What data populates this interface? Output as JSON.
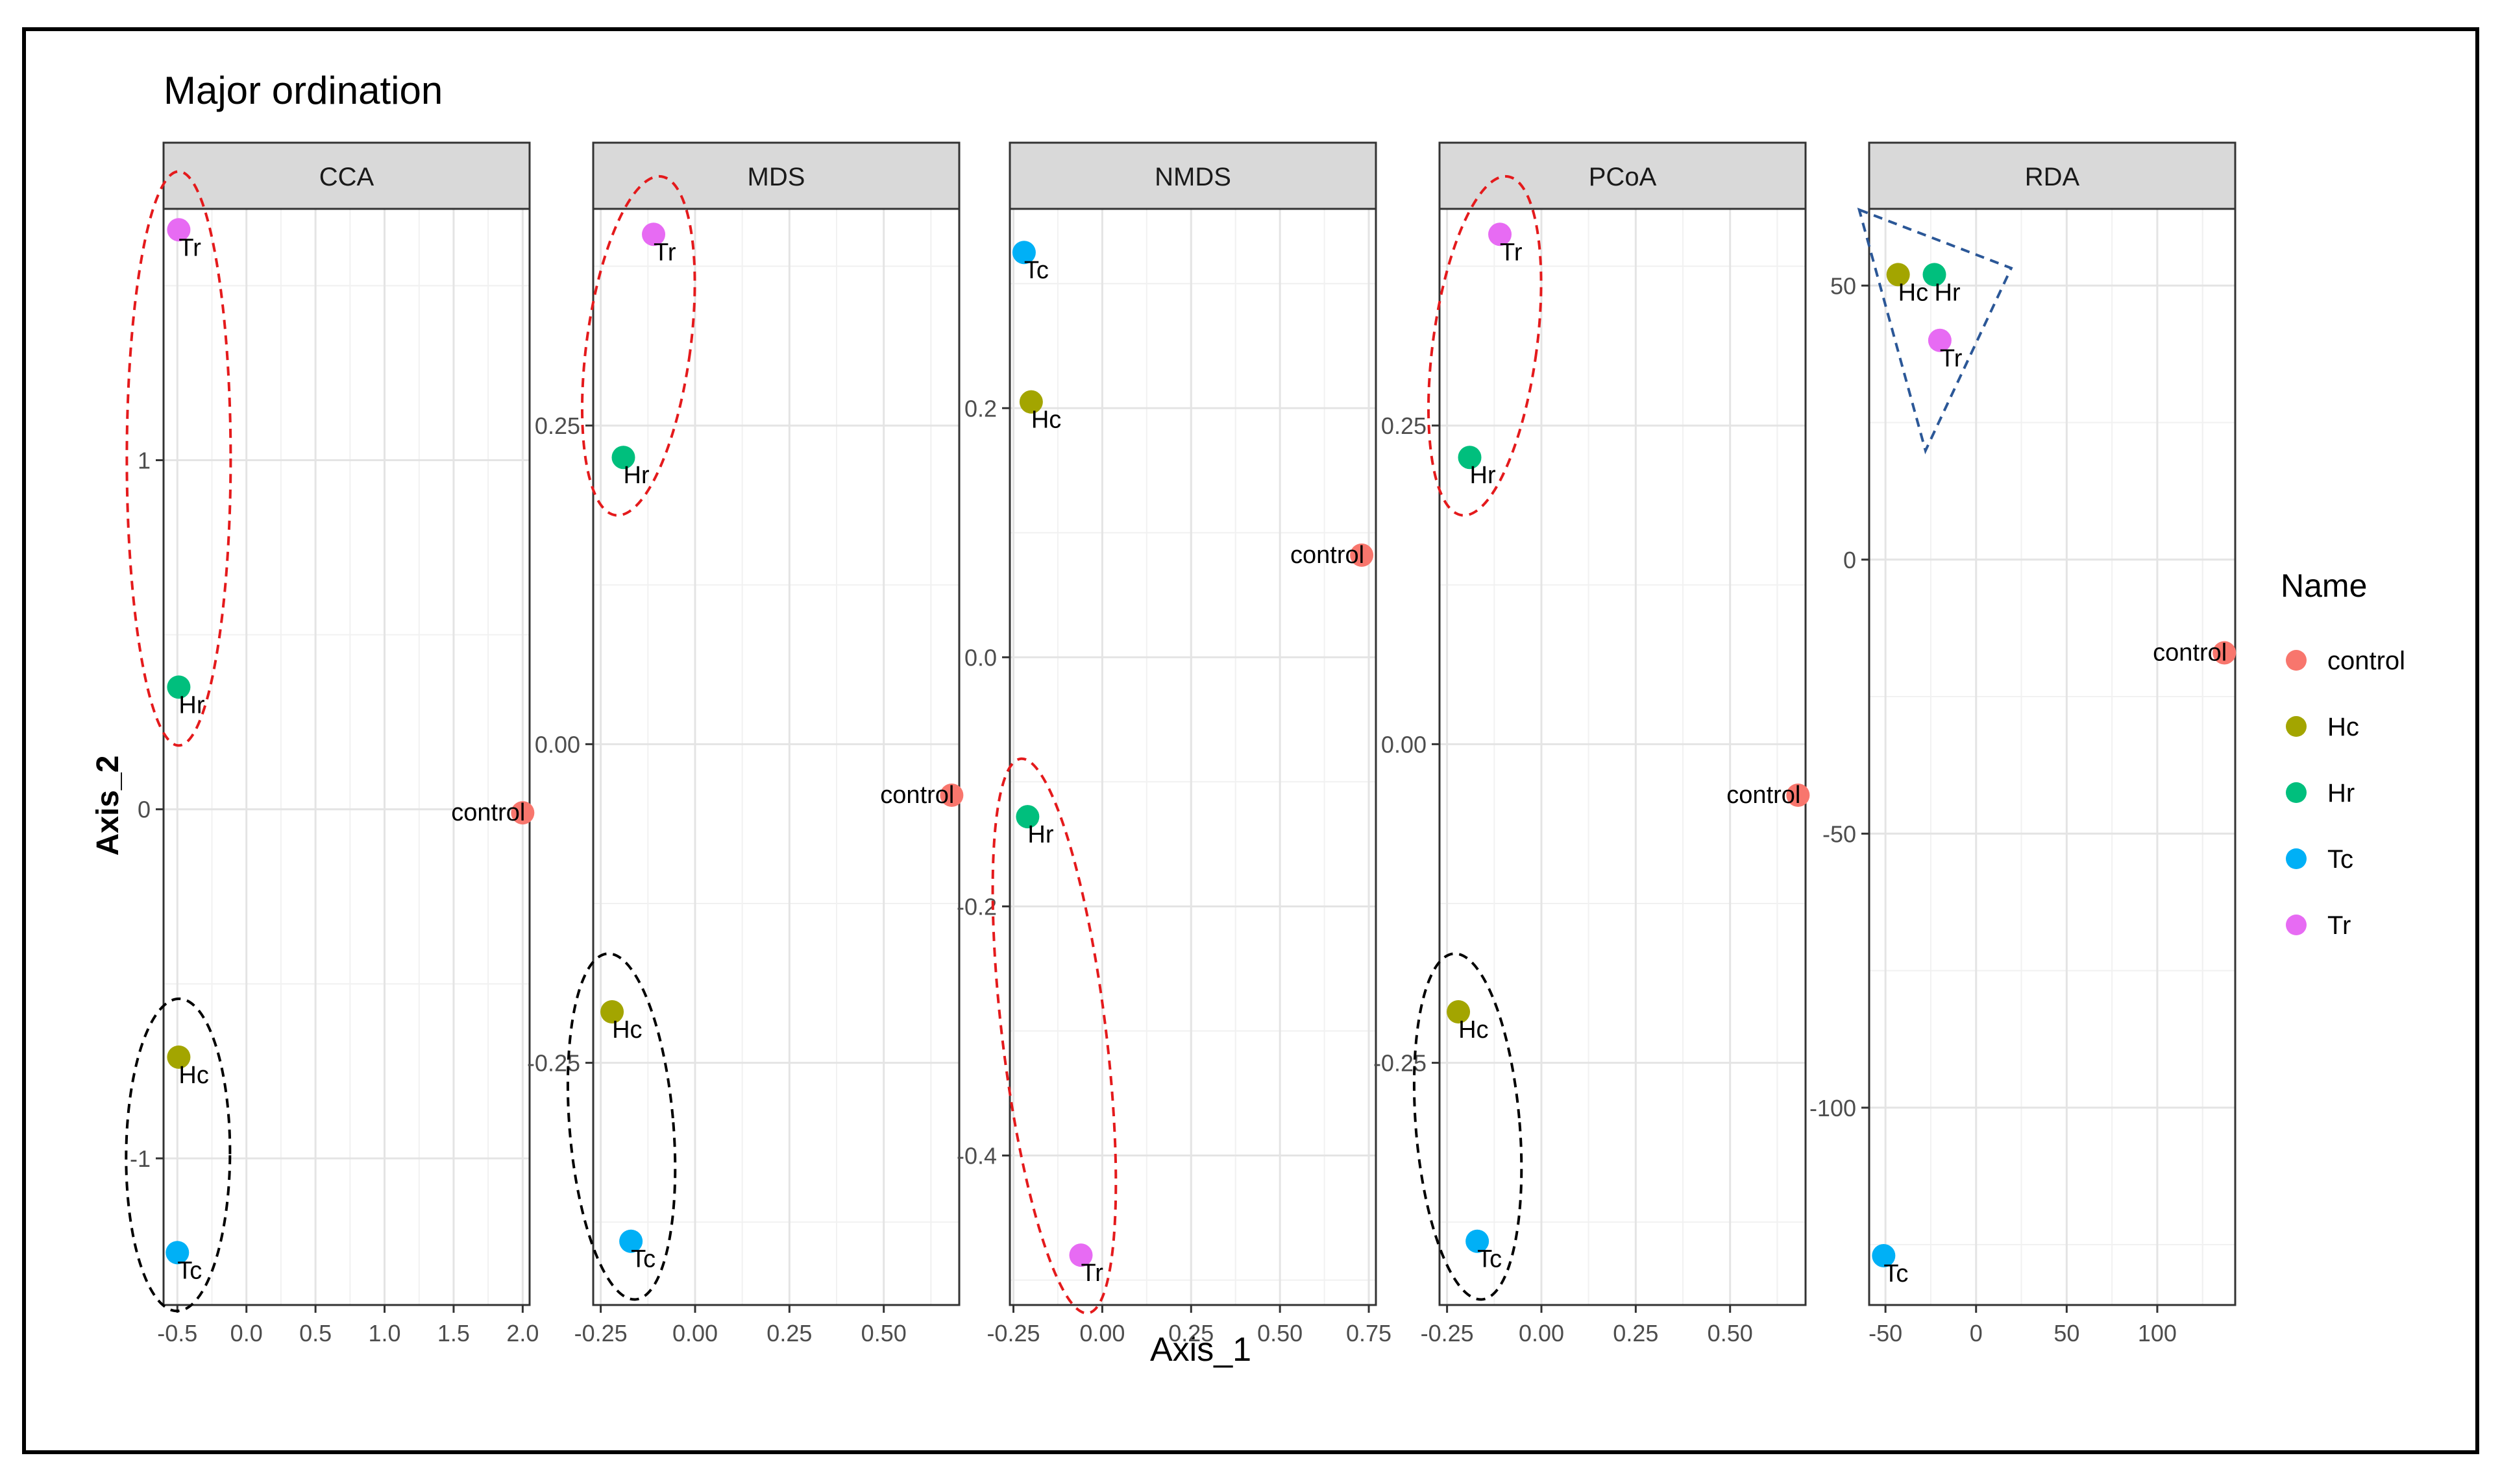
{
  "chart_data": {
    "type": "scatter",
    "title": "Major ordination",
    "xlabel": "Axis_1",
    "ylabel": "Axis_2",
    "legend": {
      "title": "Name",
      "position": "right",
      "entries": [
        {
          "name": "control",
          "color": "#F8766D"
        },
        {
          "name": "Hc",
          "color": "#A3A500"
        },
        {
          "name": "Hr",
          "color": "#00BF7D"
        },
        {
          "name": "Tc",
          "color": "#00B0F6"
        },
        {
          "name": "Tr",
          "color": "#E76BF3"
        }
      ]
    },
    "panels": [
      {
        "name": "CCA",
        "xlim": [
          -0.6,
          2.05
        ],
        "ylim": [
          -1.42,
          1.72
        ],
        "xticks": [
          -0.5,
          0.0,
          0.5,
          1.0,
          1.5,
          2.0
        ],
        "xtick_labels": [
          "-0.5",
          "0.0",
          "0.5",
          "1.0",
          "1.5",
          "2.0"
        ],
        "yticks": [
          -1,
          0,
          1
        ],
        "ytick_labels": [
          "-1",
          "0",
          "1"
        ],
        "points": [
          {
            "name": "Tr",
            "x": -0.49,
            "y": 1.66
          },
          {
            "name": "Hr",
            "x": -0.49,
            "y": 0.35
          },
          {
            "name": "control",
            "x": 2.0,
            "y": -0.01
          },
          {
            "name": "Hc",
            "x": -0.49,
            "y": -0.71
          },
          {
            "name": "Tc",
            "x": -0.5,
            "y": -1.27
          }
        ],
        "annotations": [
          {
            "shape": "ellipse",
            "style": "dashed",
            "color": "#E41A1C",
            "encloses": [
              "Tr",
              "Hr"
            ]
          },
          {
            "shape": "ellipse",
            "style": "dashed",
            "color": "#000000",
            "encloses": [
              "Hc",
              "Tc"
            ]
          }
        ]
      },
      {
        "name": "MDS",
        "xlim": [
          -0.27,
          0.7
        ],
        "ylim": [
          -0.44,
          0.42
        ],
        "xticks": [
          -0.25,
          0.0,
          0.25,
          0.5
        ],
        "xtick_labels": [
          "-0.25",
          "0.00",
          "0.25",
          "0.50"
        ],
        "yticks": [
          -0.25,
          0.0,
          0.25
        ],
        "ytick_labels": [
          "-0.25",
          "0.00",
          "0.25"
        ],
        "points": [
          {
            "name": "Tr",
            "x": -0.11,
            "y": 0.4
          },
          {
            "name": "Hr",
            "x": -0.19,
            "y": 0.225
          },
          {
            "name": "control",
            "x": 0.68,
            "y": -0.04
          },
          {
            "name": "Hc",
            "x": -0.22,
            "y": -0.21
          },
          {
            "name": "Tc",
            "x": -0.17,
            "y": -0.39
          }
        ],
        "annotations": [
          {
            "shape": "ellipse",
            "style": "dashed",
            "color": "#E41A1C",
            "encloses": [
              "Tr",
              "Hr"
            ]
          },
          {
            "shape": "ellipse",
            "style": "dashed",
            "color": "#000000",
            "encloses": [
              "Hc",
              "Tc"
            ]
          }
        ]
      },
      {
        "name": "NMDS",
        "xlim": [
          -0.26,
          0.77
        ],
        "ylim": [
          -0.52,
          0.36
        ],
        "xticks": [
          -0.25,
          0.0,
          0.25,
          0.5,
          0.75
        ],
        "xtick_labels": [
          "-0.25",
          "0.00",
          "0.25",
          "0.50",
          "0.75"
        ],
        "yticks": [
          -0.4,
          -0.2,
          0.0,
          0.2
        ],
        "ytick_labels": [
          "-0.4",
          "-0.2",
          "0.0",
          "0.2"
        ],
        "points": [
          {
            "name": "Tc",
            "x": -0.22,
            "y": 0.325
          },
          {
            "name": "Hc",
            "x": -0.2,
            "y": 0.205
          },
          {
            "name": "control",
            "x": 0.73,
            "y": 0.082
          },
          {
            "name": "Hr",
            "x": -0.21,
            "y": -0.128
          },
          {
            "name": "Tr",
            "x": -0.06,
            "y": -0.48
          }
        ],
        "annotations": [
          {
            "shape": "ellipse",
            "style": "dashed",
            "color": "#E41A1C",
            "encloses": [
              "Hr",
              "Tr"
            ]
          }
        ]
      },
      {
        "name": "PCoA",
        "xlim": [
          -0.27,
          0.7
        ],
        "ylim": [
          -0.44,
          0.42
        ],
        "xticks": [
          -0.25,
          0.0,
          0.25,
          0.5
        ],
        "xtick_labels": [
          "-0.25",
          "0.00",
          "0.25",
          "0.50"
        ],
        "yticks": [
          -0.25,
          0.0,
          0.25
        ],
        "ytick_labels": [
          "-0.25",
          "0.00",
          "0.25"
        ],
        "points": [
          {
            "name": "Tr",
            "x": -0.11,
            "y": 0.4
          },
          {
            "name": "Hr",
            "x": -0.19,
            "y": 0.225
          },
          {
            "name": "control",
            "x": 0.68,
            "y": -0.04
          },
          {
            "name": "Hc",
            "x": -0.22,
            "y": -0.21
          },
          {
            "name": "Tc",
            "x": -0.17,
            "y": -0.39
          }
        ],
        "annotations": [
          {
            "shape": "ellipse",
            "style": "dashed",
            "color": "#E41A1C",
            "encloses": [
              "Tr",
              "Hr"
            ]
          },
          {
            "shape": "ellipse",
            "style": "dashed",
            "color": "#000000",
            "encloses": [
              "Hc",
              "Tc"
            ]
          }
        ]
      },
      {
        "name": "RDA",
        "xlim": [
          -59,
          143
        ],
        "ylim": [
          -136,
          64
        ],
        "xticks": [
          -50,
          0,
          50,
          100
        ],
        "xtick_labels": [
          "-50",
          "0",
          "50",
          "100"
        ],
        "yticks": [
          -100,
          -50,
          0,
          50
        ],
        "ytick_labels": [
          "-100",
          "-50",
          "0",
          "50"
        ],
        "points": [
          {
            "name": "Hc",
            "x": -43,
            "y": 52
          },
          {
            "name": "Hr",
            "x": -23,
            "y": 52
          },
          {
            "name": "Tr",
            "x": -20,
            "y": 40
          },
          {
            "name": "control",
            "x": 137,
            "y": -17
          },
          {
            "name": "Tc",
            "x": -51,
            "y": -127
          }
        ],
        "annotations": [
          {
            "shape": "triangle",
            "style": "dashed",
            "color": "#2B5797",
            "encloses": [
              "Hc",
              "Hr",
              "Tr"
            ]
          }
        ]
      }
    ]
  }
}
